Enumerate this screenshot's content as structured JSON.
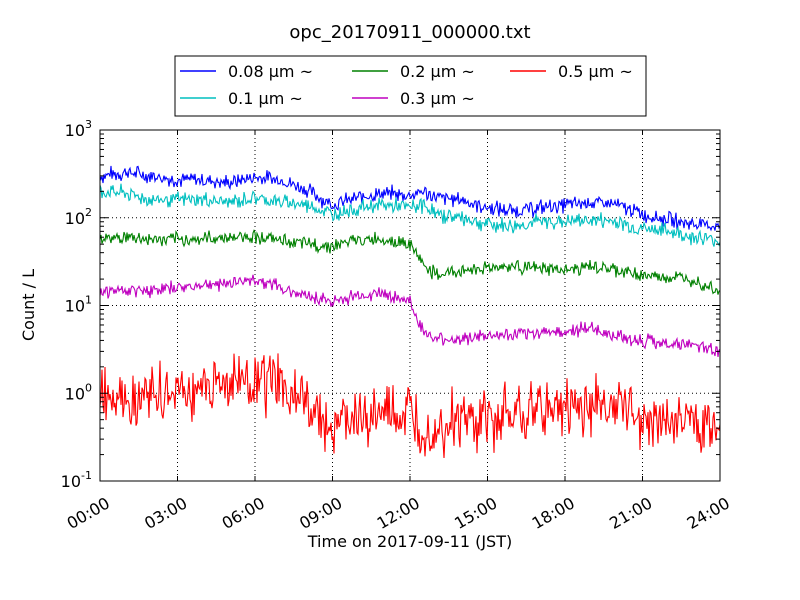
{
  "chart_data": {
    "type": "line",
    "title": "opc_20170911_000000.txt",
    "xlabel": "Time on 2017-09-11 (JST)",
    "ylabel": "Count / L",
    "yscale": "log",
    "xlim": [
      "00:00",
      "24:00"
    ],
    "ylim": [
      0.1,
      1000
    ],
    "grid": true,
    "legend_position": "top-center",
    "x_ticks": [
      "00:00",
      "03:00",
      "06:00",
      "09:00",
      "12:00",
      "15:00",
      "18:00",
      "21:00",
      "24:00"
    ],
    "y_ticks": [
      {
        "base": "10",
        "exp": "-1",
        "value": 0.1
      },
      {
        "base": "10",
        "exp": "0",
        "value": 1
      },
      {
        "base": "10",
        "exp": "1",
        "value": 10
      },
      {
        "base": "10",
        "exp": "2",
        "value": 100
      },
      {
        "base": "10",
        "exp": "3",
        "value": 1000
      }
    ],
    "x": [
      "00:00",
      "01:00",
      "02:00",
      "03:00",
      "04:00",
      "05:00",
      "06:00",
      "07:00",
      "08:00",
      "09:00",
      "10:00",
      "11:00",
      "12:00",
      "12:30",
      "13:00",
      "14:00",
      "15:00",
      "16:00",
      "17:00",
      "18:00",
      "19:00",
      "20:00",
      "21:00",
      "22:00",
      "23:00",
      "24:00"
    ],
    "series": [
      {
        "name": "0.08 μm ~",
        "color": "#0000ff",
        "values": [
          300,
          330,
          300,
          270,
          270,
          250,
          290,
          270,
          210,
          140,
          170,
          190,
          180,
          200,
          170,
          160,
          130,
          120,
          130,
          140,
          150,
          140,
          110,
          95,
          85,
          80
        ]
      },
      {
        "name": "0.1 μm ~",
        "color": "#00bfbf",
        "values": [
          200,
          190,
          160,
          160,
          160,
          150,
          170,
          150,
          140,
          110,
          130,
          140,
          130,
          140,
          110,
          100,
          85,
          80,
          90,
          90,
          95,
          90,
          75,
          70,
          60,
          55
        ]
      },
      {
        "name": "0.2 μm ~",
        "color": "#008000",
        "values": [
          58,
          60,
          57,
          56,
          58,
          60,
          62,
          55,
          50,
          48,
          55,
          58,
          50,
          30,
          22,
          25,
          27,
          28,
          26,
          25,
          28,
          25,
          22,
          21,
          20,
          15
        ]
      },
      {
        "name": "0.3 μm ~",
        "color": "#bf00bf",
        "values": [
          14,
          15,
          15,
          16,
          17,
          18,
          20,
          16,
          13,
          11,
          13,
          14,
          11,
          5,
          4,
          4.2,
          4.5,
          4.5,
          5,
          5,
          5.5,
          4.5,
          4,
          3.7,
          3.5,
          3
        ]
      },
      {
        "name": "0.5 μm ~",
        "color": "#ff0000",
        "values": [
          1.0,
          1.05,
          0.9,
          1.0,
          1.2,
          1.3,
          1.5,
          1.2,
          0.7,
          0.45,
          0.5,
          0.55,
          0.5,
          0.4,
          0.4,
          0.5,
          0.45,
          0.6,
          0.65,
          0.7,
          0.75,
          0.7,
          0.55,
          0.5,
          0.45,
          0.45
        ]
      }
    ]
  }
}
